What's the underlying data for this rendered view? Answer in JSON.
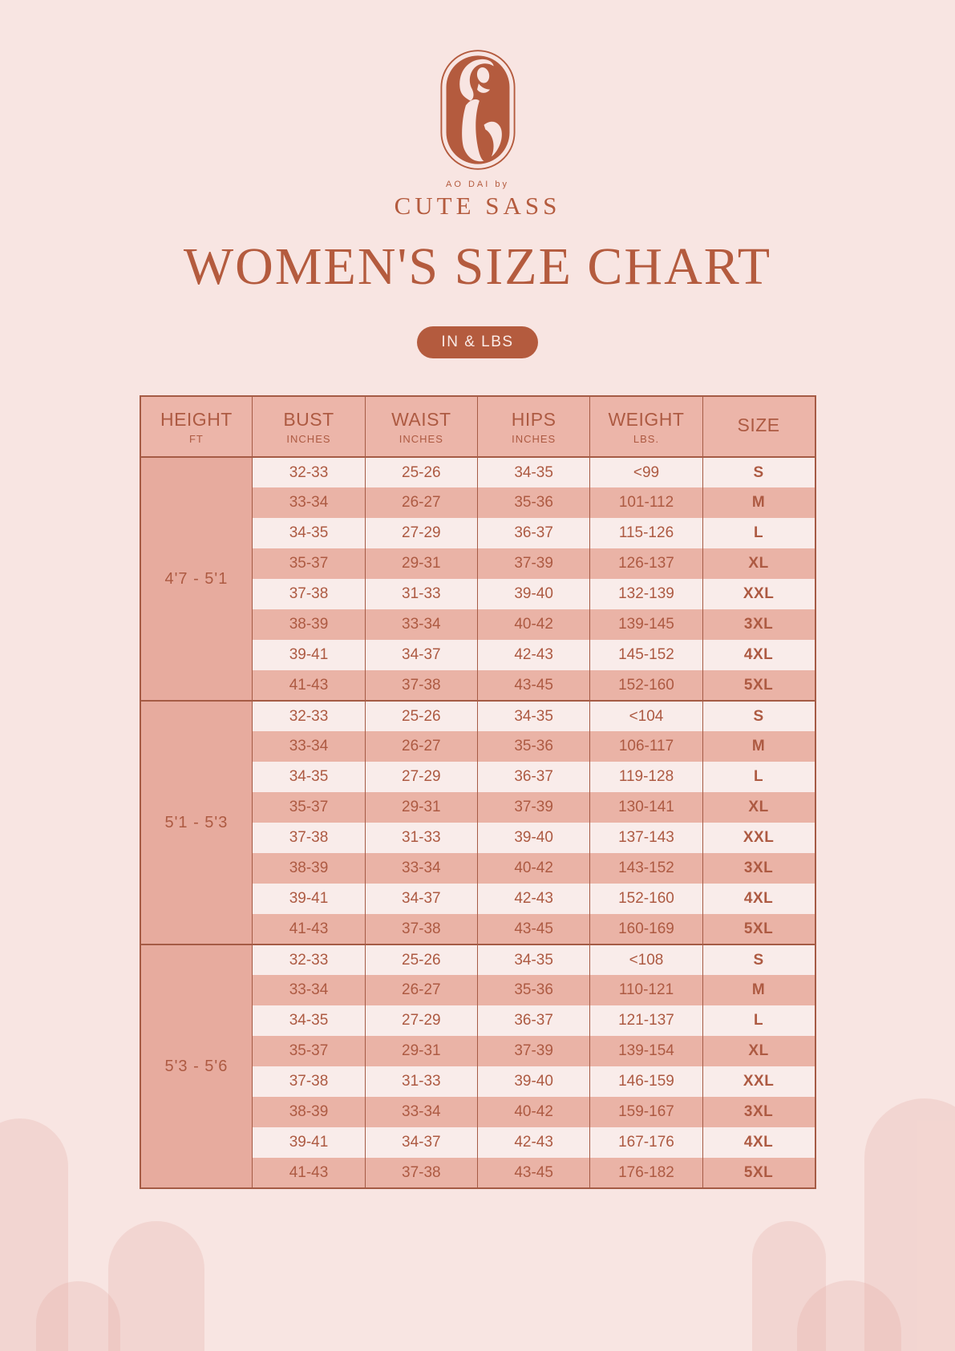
{
  "brand": {
    "tagline": "AO DAI by",
    "name": "CUTE SASS"
  },
  "title": "WOMEN'S SIZE CHART",
  "badge": "IN & LBS",
  "colors": {
    "background": "#f8e5e2",
    "accent": "#b45b3e",
    "border": "#a55b45",
    "text": "#ad5a42",
    "header_bg": "#ecb5a9",
    "row_bg": "#f9ecea",
    "row_alt_bg": "#eab3a6",
    "height_col_bg": "#e7ab9e",
    "badge_text": "#faeae6"
  },
  "table": {
    "headers": [
      {
        "label": "HEIGHT",
        "sub": "FT"
      },
      {
        "label": "BUST",
        "sub": "INCHES"
      },
      {
        "label": "WAIST",
        "sub": "INCHES"
      },
      {
        "label": "HIPS",
        "sub": "INCHES"
      },
      {
        "label": "WEIGHT",
        "sub": "LBS."
      },
      {
        "label": "SIZE",
        "sub": ""
      }
    ],
    "groups": [
      {
        "height": "4'7 - 5'1",
        "rows": [
          [
            "32-33",
            "25-26",
            "34-35",
            "<99",
            "S"
          ],
          [
            "33-34",
            "26-27",
            "35-36",
            "101-112",
            "M"
          ],
          [
            "34-35",
            "27-29",
            "36-37",
            "115-126",
            "L"
          ],
          [
            "35-37",
            "29-31",
            "37-39",
            "126-137",
            "XL"
          ],
          [
            "37-38",
            "31-33",
            "39-40",
            "132-139",
            "XXL"
          ],
          [
            "38-39",
            "33-34",
            "40-42",
            "139-145",
            "3XL"
          ],
          [
            "39-41",
            "34-37",
            "42-43",
            "145-152",
            "4XL"
          ],
          [
            "41-43",
            "37-38",
            "43-45",
            "152-160",
            "5XL"
          ]
        ]
      },
      {
        "height": "5'1 - 5'3",
        "rows": [
          [
            "32-33",
            "25-26",
            "34-35",
            "<104",
            "S"
          ],
          [
            "33-34",
            "26-27",
            "35-36",
            "106-117",
            "M"
          ],
          [
            "34-35",
            "27-29",
            "36-37",
            "119-128",
            "L"
          ],
          [
            "35-37",
            "29-31",
            "37-39",
            "130-141",
            "XL"
          ],
          [
            "37-38",
            "31-33",
            "39-40",
            "137-143",
            "XXL"
          ],
          [
            "38-39",
            "33-34",
            "40-42",
            "143-152",
            "3XL"
          ],
          [
            "39-41",
            "34-37",
            "42-43",
            "152-160",
            "4XL"
          ],
          [
            "41-43",
            "37-38",
            "43-45",
            "160-169",
            "5XL"
          ]
        ]
      },
      {
        "height": "5'3 - 5'6",
        "rows": [
          [
            "32-33",
            "25-26",
            "34-35",
            "<108",
            "S"
          ],
          [
            "33-34",
            "26-27",
            "35-36",
            "110-121",
            "M"
          ],
          [
            "34-35",
            "27-29",
            "36-37",
            "121-137",
            "L"
          ],
          [
            "35-37",
            "29-31",
            "37-39",
            "139-154",
            "XL"
          ],
          [
            "37-38",
            "31-33",
            "39-40",
            "146-159",
            "XXL"
          ],
          [
            "38-39",
            "33-34",
            "40-42",
            "159-167",
            "3XL"
          ],
          [
            "39-41",
            "34-37",
            "42-43",
            "167-176",
            "4XL"
          ],
          [
            "41-43",
            "37-38",
            "43-45",
            "176-182",
            "5XL"
          ]
        ]
      }
    ]
  }
}
